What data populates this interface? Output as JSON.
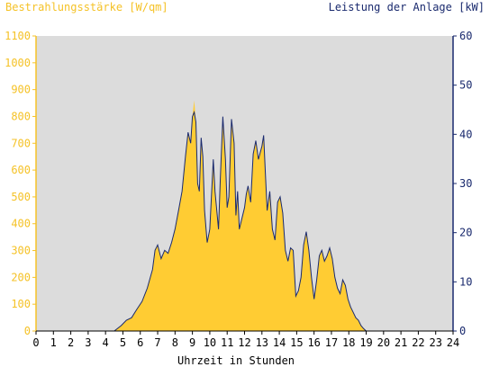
{
  "chart_data": {
    "type": "area",
    "title_left": "Bestrahlungsstärke [W/qm]",
    "title_right": "Leistung der Anlage [kW]",
    "xlabel": "Uhrzeit in Stunden",
    "xlim": [
      0,
      24
    ],
    "x_ticks": [
      "0",
      "1",
      "2",
      "3",
      "4",
      "5",
      "6",
      "7",
      "8",
      "9",
      "10",
      "11",
      "12",
      "13",
      "14",
      "15",
      "16",
      "17",
      "18",
      "19",
      "20",
      "21",
      "22",
      "23",
      "24"
    ],
    "left_axis": {
      "ylim": [
        0,
        1100
      ],
      "ticks": [
        "0",
        "100",
        "200",
        "300",
        "400",
        "500",
        "600",
        "700",
        "800",
        "900",
        "1000",
        "1100"
      ]
    },
    "right_axis": {
      "ylim": [
        0,
        60
      ],
      "ticks": [
        "0",
        "10",
        "20",
        "30",
        "40",
        "50",
        "60"
      ]
    },
    "colors": {
      "irradiance": "#ffcc33",
      "power": "#1a2a6e",
      "plot_bg": "#dcdcdc",
      "left_axis": "#f5c227",
      "right_axis": "#1a2a6e"
    },
    "series": [
      {
        "name": "Bestrahlungsstärke",
        "axis": "left",
        "style": "area",
        "x": [
          0,
          4.5,
          4.9,
          5.2,
          5.5,
          5.8,
          6.1,
          6.4,
          6.7,
          6.85,
          7.0,
          7.2,
          7.4,
          7.6,
          7.8,
          8.0,
          8.2,
          8.4,
          8.6,
          8.75,
          8.9,
          9.0,
          9.1,
          9.2,
          9.3,
          9.4,
          9.5,
          9.6,
          9.7,
          9.85,
          10.0,
          10.2,
          10.3,
          10.5,
          10.6,
          10.75,
          10.9,
          11.0,
          11.1,
          11.25,
          11.4,
          11.5,
          11.6,
          11.7,
          11.85,
          12.0,
          12.1,
          12.2,
          12.35,
          12.5,
          12.65,
          12.8,
          13.0,
          13.1,
          13.2,
          13.3,
          13.45,
          13.6,
          13.75,
          13.9,
          14.05,
          14.2,
          14.35,
          14.5,
          14.65,
          14.8,
          14.95,
          15.1,
          15.25,
          15.4,
          15.55,
          15.7,
          15.85,
          16.0,
          16.15,
          16.3,
          16.45,
          16.6,
          16.75,
          16.9,
          17.05,
          17.2,
          17.35,
          17.5,
          17.65,
          17.8,
          17.95,
          18.1,
          18.25,
          18.4,
          18.55,
          18.7,
          18.85,
          19.0,
          19.2,
          19.4,
          19.6,
          19.8,
          20.0,
          20.2,
          24
        ],
        "y": [
          0,
          0,
          20,
          40,
          50,
          80,
          110,
          160,
          230,
          300,
          320,
          270,
          300,
          290,
          330,
          380,
          450,
          520,
          650,
          740,
          700,
          800,
          860,
          780,
          550,
          520,
          720,
          650,
          450,
          330,
          380,
          640,
          520,
          380,
          560,
          800,
          640,
          460,
          500,
          790,
          700,
          430,
          520,
          380,
          420,
          460,
          510,
          540,
          480,
          660,
          710,
          640,
          690,
          730,
          590,
          450,
          520,
          380,
          340,
          480,
          500,
          440,
          300,
          260,
          310,
          300,
          130,
          150,
          200,
          320,
          370,
          300,
          200,
          120,
          190,
          280,
          300,
          260,
          280,
          310,
          270,
          200,
          160,
          140,
          190,
          170,
          120,
          90,
          70,
          50,
          40,
          20,
          10,
          0,
          0,
          0,
          0,
          0,
          0,
          0,
          0
        ]
      },
      {
        "name": "Leistung der Anlage",
        "axis": "right",
        "style": "line",
        "x": [
          0,
          4.5,
          4.9,
          5.2,
          5.5,
          5.8,
          6.1,
          6.4,
          6.7,
          6.85,
          7.0,
          7.2,
          7.4,
          7.6,
          7.8,
          8.0,
          8.2,
          8.4,
          8.6,
          8.75,
          8.9,
          9.0,
          9.1,
          9.2,
          9.3,
          9.4,
          9.5,
          9.6,
          9.7,
          9.85,
          10.0,
          10.2,
          10.3,
          10.5,
          10.6,
          10.75,
          10.9,
          11.0,
          11.1,
          11.25,
          11.4,
          11.5,
          11.6,
          11.7,
          11.85,
          12.0,
          12.1,
          12.2,
          12.35,
          12.5,
          12.65,
          12.8,
          13.0,
          13.1,
          13.2,
          13.3,
          13.45,
          13.6,
          13.75,
          13.9,
          14.05,
          14.2,
          14.35,
          14.5,
          14.65,
          14.8,
          14.95,
          15.1,
          15.25,
          15.4,
          15.55,
          15.7,
          15.85,
          16.0,
          16.15,
          16.3,
          16.45,
          16.6,
          16.75,
          16.9,
          17.05,
          17.2,
          17.35,
          17.5,
          17.65,
          17.8,
          17.95,
          18.1,
          18.25,
          18.4,
          18.55,
          18.7,
          18.85,
          19.0,
          19.2,
          19.4,
          19.6,
          19.8,
          20.0,
          20.2,
          24
        ],
        "y": [
          0,
          0,
          1.1,
          2.2,
          2.7,
          4.4,
          6,
          8.7,
          12.5,
          16.4,
          17.5,
          14.7,
          16.4,
          15.8,
          18,
          20.7,
          24.5,
          28.4,
          35.5,
          40.4,
          38.2,
          43.6,
          44.5,
          42.5,
          30,
          28.4,
          39.3,
          35.5,
          24.5,
          18,
          20.7,
          34.9,
          28.4,
          20.7,
          30.5,
          43.6,
          34.9,
          25.1,
          27.3,
          43.1,
          38.2,
          23.5,
          28.4,
          20.7,
          22.9,
          25.1,
          27.8,
          29.5,
          26.2,
          36,
          38.7,
          34.9,
          37.6,
          39.8,
          32.2,
          24.5,
          28.4,
          20.7,
          18.5,
          26.2,
          27.3,
          24,
          16.4,
          14.2,
          16.9,
          16.4,
          7.1,
          8.2,
          10.9,
          17.5,
          20.2,
          16.4,
          10.9,
          6.5,
          10.4,
          15.3,
          16.4,
          14.2,
          15.3,
          16.9,
          14.7,
          10.9,
          8.7,
          7.6,
          10.4,
          9.3,
          6.5,
          4.9,
          3.8,
          2.7,
          2.2,
          1.1,
          0.5,
          0,
          0,
          0,
          0,
          0,
          0,
          0,
          0
        ]
      }
    ],
    "legend": "none",
    "grid": false
  }
}
